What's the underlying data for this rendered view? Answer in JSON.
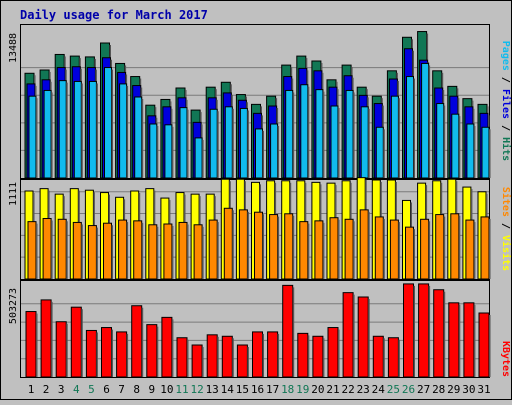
{
  "title": "Daily usage for March 2017",
  "colors": {
    "background": "#c0c0c0",
    "title": "#0000aa",
    "hits": "#117755",
    "files": "#0000dd",
    "pages": "#11bbee",
    "visits": "#ffff00",
    "sites": "#ff8800",
    "kbytes": "#ff0000",
    "weekend_label": "#117755",
    "weekday_label": "#000000",
    "grid": "#7a7a7a"
  },
  "chart_data": [
    {
      "type": "bar",
      "title": "Daily usage for March 2017",
      "panel": "hits_files_pages",
      "legend": [
        "Pages",
        "Files",
        "Hits"
      ],
      "legend_placement": "right",
      "ytick": "13488",
      "ylim": [
        0,
        18700
      ],
      "grid": true,
      "categories": [
        "1",
        "2",
        "3",
        "4",
        "5",
        "6",
        "7",
        "8",
        "9",
        "10",
        "11",
        "12",
        "13",
        "14",
        "15",
        "16",
        "17",
        "18",
        "19",
        "20",
        "21",
        "22",
        "23",
        "24",
        "25",
        "26",
        "27",
        "28",
        "29",
        "30",
        "31"
      ],
      "series": [
        {
          "name": "Hits",
          "values": [
            12800,
            13200,
            15100,
            14900,
            14800,
            16500,
            14000,
            12400,
            8900,
            9600,
            11000,
            8300,
            11100,
            11700,
            10200,
            9000,
            10000,
            13800,
            14900,
            14300,
            12000,
            13800,
            11100,
            10000,
            13100,
            17200,
            17900,
            13100,
            11200,
            9700,
            9000
          ]
        },
        {
          "name": "Files",
          "values": [
            11500,
            12000,
            13500,
            13600,
            13500,
            14700,
            12900,
            11300,
            7600,
            8700,
            9800,
            6800,
            9800,
            10400,
            9500,
            7900,
            8800,
            12400,
            13400,
            13100,
            11100,
            12500,
            10100,
            9100,
            12100,
            15800,
            14400,
            11000,
            10000,
            8700,
            7900
          ]
        },
        {
          "name": "Pages",
          "values": [
            10000,
            10700,
            11900,
            11800,
            11800,
            13500,
            11500,
            9900,
            6600,
            6500,
            8600,
            4900,
            8400,
            8700,
            8500,
            6000,
            6600,
            10700,
            11400,
            10800,
            8800,
            10700,
            8700,
            6200,
            10000,
            12400,
            14000,
            9100,
            7800,
            6600,
            6200
          ]
        }
      ]
    },
    {
      "type": "bar",
      "panel": "visits_sites",
      "legend": [
        "Sites",
        "Visits"
      ],
      "legend_placement": "right",
      "ytick": "1111",
      "ylim": [
        0,
        1260
      ],
      "grid": true,
      "categories": [
        "1",
        "2",
        "3",
        "4",
        "5",
        "6",
        "7",
        "8",
        "9",
        "10",
        "11",
        "12",
        "13",
        "14",
        "15",
        "16",
        "17",
        "18",
        "19",
        "20",
        "21",
        "22",
        "23",
        "24",
        "25",
        "26",
        "27",
        "28",
        "29",
        "30",
        "31"
      ],
      "series": [
        {
          "name": "Visits",
          "values": [
            1120,
            1150,
            1080,
            1150,
            1130,
            1100,
            1040,
            1120,
            1150,
            1030,
            1100,
            1080,
            1080,
            1270,
            1270,
            1230,
            1250,
            1250,
            1250,
            1230,
            1220,
            1250,
            1290,
            1260,
            1260,
            1000,
            1220,
            1250,
            1270,
            1170,
            1110
          ]
        },
        {
          "name": "Sites",
          "values": [
            730,
            770,
            760,
            720,
            680,
            710,
            750,
            740,
            690,
            700,
            720,
            690,
            750,
            900,
            880,
            850,
            820,
            830,
            730,
            740,
            780,
            760,
            880,
            790,
            750,
            660,
            760,
            820,
            830,
            750,
            790
          ]
        }
      ]
    },
    {
      "type": "bar",
      "panel": "kbytes",
      "legend": [
        "KBytes"
      ],
      "legend_placement": "right",
      "ytick": "503273",
      "ylim": [
        0,
        660000
      ],
      "grid": true,
      "categories": [
        "1",
        "2",
        "3",
        "4",
        "5",
        "6",
        "7",
        "8",
        "9",
        "10",
        "11",
        "12",
        "13",
        "14",
        "15",
        "16",
        "17",
        "18",
        "19",
        "20",
        "21",
        "22",
        "23",
        "24",
        "25",
        "26",
        "27",
        "28",
        "29",
        "30",
        "31"
      ],
      "series": [
        {
          "name": "KBytes",
          "values": [
            450000,
            530000,
            380000,
            480000,
            320000,
            340000,
            310000,
            490000,
            360000,
            410000,
            270000,
            220000,
            290000,
            280000,
            220000,
            310000,
            310000,
            630000,
            300000,
            280000,
            340000,
            580000,
            550000,
            280000,
            270000,
            640000,
            640000,
            600000,
            510000,
            510000,
            440000
          ]
        }
      ]
    }
  ],
  "x_labels": [
    {
      "text": "1",
      "weekend": false
    },
    {
      "text": "2",
      "weekend": false
    },
    {
      "text": "3",
      "weekend": false
    },
    {
      "text": "4",
      "weekend": true
    },
    {
      "text": "5",
      "weekend": true
    },
    {
      "text": "6",
      "weekend": false
    },
    {
      "text": "7",
      "weekend": false
    },
    {
      "text": "8",
      "weekend": false
    },
    {
      "text": "9",
      "weekend": false
    },
    {
      "text": "10",
      "weekend": false
    },
    {
      "text": "11",
      "weekend": true
    },
    {
      "text": "12",
      "weekend": true
    },
    {
      "text": "13",
      "weekend": false
    },
    {
      "text": "14",
      "weekend": false
    },
    {
      "text": "15",
      "weekend": false
    },
    {
      "text": "16",
      "weekend": false
    },
    {
      "text": "17",
      "weekend": false
    },
    {
      "text": "18",
      "weekend": true
    },
    {
      "text": "19",
      "weekend": true
    },
    {
      "text": "20",
      "weekend": false
    },
    {
      "text": "21",
      "weekend": false
    },
    {
      "text": "22",
      "weekend": false
    },
    {
      "text": "23",
      "weekend": false
    },
    {
      "text": "24",
      "weekend": false
    },
    {
      "text": "25",
      "weekend": true
    },
    {
      "text": "26",
      "weekend": true
    },
    {
      "text": "27",
      "weekend": false
    },
    {
      "text": "28",
      "weekend": false
    },
    {
      "text": "29",
      "weekend": false
    },
    {
      "text": "30",
      "weekend": false
    },
    {
      "text": "31",
      "weekend": false
    }
  ],
  "legends": {
    "top": [
      {
        "text": "Pages",
        "color_key": "pages"
      },
      {
        "text": " / ",
        "color_key": "weekday_label"
      },
      {
        "text": "Files",
        "color_key": "files"
      },
      {
        "text": " / ",
        "color_key": "weekday_label"
      },
      {
        "text": "Hits",
        "color_key": "hits"
      }
    ],
    "middle": [
      {
        "text": "Sites",
        "color_key": "sites"
      },
      {
        "text": " / ",
        "color_key": "weekday_label"
      },
      {
        "text": "Visits",
        "color_key": "visits"
      }
    ],
    "bottom": [
      {
        "text": "KBytes",
        "color_key": "kbytes"
      }
    ]
  }
}
